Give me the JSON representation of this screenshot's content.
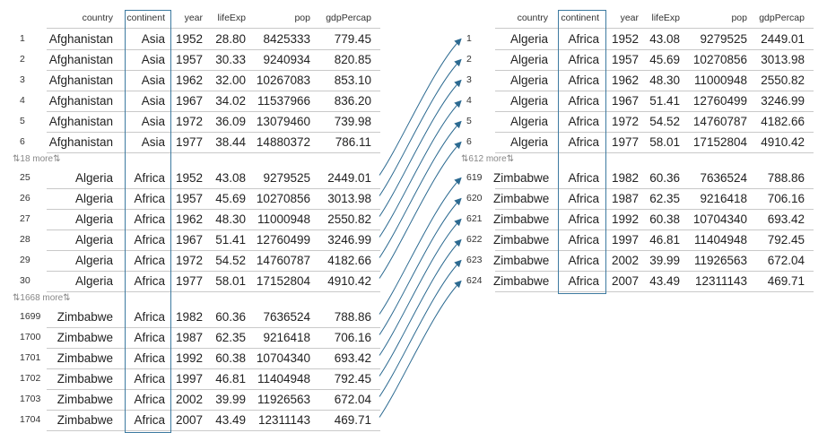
{
  "columns": [
    "country",
    "continent",
    "year",
    "lifeExp",
    "pop",
    "gdpPercap"
  ],
  "left_table": {
    "groups": [
      {
        "rows": [
          {
            "n": "1",
            "country": "Afghanistan",
            "continent": "Asia",
            "year": "1952",
            "lifeExp": "28.80",
            "pop": "8425333",
            "gdpPercap": "779.45"
          },
          {
            "n": "2",
            "country": "Afghanistan",
            "continent": "Asia",
            "year": "1957",
            "lifeExp": "30.33",
            "pop": "9240934",
            "gdpPercap": "820.85"
          },
          {
            "n": "3",
            "country": "Afghanistan",
            "continent": "Asia",
            "year": "1962",
            "lifeExp": "32.00",
            "pop": "10267083",
            "gdpPercap": "853.10"
          },
          {
            "n": "4",
            "country": "Afghanistan",
            "continent": "Asia",
            "year": "1967",
            "lifeExp": "34.02",
            "pop": "11537966",
            "gdpPercap": "836.20"
          },
          {
            "n": "5",
            "country": "Afghanistan",
            "continent": "Asia",
            "year": "1972",
            "lifeExp": "36.09",
            "pop": "13079460",
            "gdpPercap": "739.98"
          },
          {
            "n": "6",
            "country": "Afghanistan",
            "continent": "Asia",
            "year": "1977",
            "lifeExp": "38.44",
            "pop": "14880372",
            "gdpPercap": "786.11"
          }
        ],
        "gap_label": "⇅18 more⇅"
      },
      {
        "rows": [
          {
            "n": "25",
            "country": "Algeria",
            "continent": "Africa",
            "year": "1952",
            "lifeExp": "43.08",
            "pop": "9279525",
            "gdpPercap": "2449.01"
          },
          {
            "n": "26",
            "country": "Algeria",
            "continent": "Africa",
            "year": "1957",
            "lifeExp": "45.69",
            "pop": "10270856",
            "gdpPercap": "3013.98"
          },
          {
            "n": "27",
            "country": "Algeria",
            "continent": "Africa",
            "year": "1962",
            "lifeExp": "48.30",
            "pop": "11000948",
            "gdpPercap": "2550.82"
          },
          {
            "n": "28",
            "country": "Algeria",
            "continent": "Africa",
            "year": "1967",
            "lifeExp": "51.41",
            "pop": "12760499",
            "gdpPercap": "3246.99"
          },
          {
            "n": "29",
            "country": "Algeria",
            "continent": "Africa",
            "year": "1972",
            "lifeExp": "54.52",
            "pop": "14760787",
            "gdpPercap": "4182.66"
          },
          {
            "n": "30",
            "country": "Algeria",
            "continent": "Africa",
            "year": "1977",
            "lifeExp": "58.01",
            "pop": "17152804",
            "gdpPercap": "4910.42"
          }
        ],
        "gap_label": "⇅1668 more⇅"
      },
      {
        "rows": [
          {
            "n": "1699",
            "country": "Zimbabwe",
            "continent": "Africa",
            "year": "1982",
            "lifeExp": "60.36",
            "pop": "7636524",
            "gdpPercap": "788.86"
          },
          {
            "n": "1700",
            "country": "Zimbabwe",
            "continent": "Africa",
            "year": "1987",
            "lifeExp": "62.35",
            "pop": "9216418",
            "gdpPercap": "706.16"
          },
          {
            "n": "1701",
            "country": "Zimbabwe",
            "continent": "Africa",
            "year": "1992",
            "lifeExp": "60.38",
            "pop": "10704340",
            "gdpPercap": "693.42"
          },
          {
            "n": "1702",
            "country": "Zimbabwe",
            "continent": "Africa",
            "year": "1997",
            "lifeExp": "46.81",
            "pop": "11404948",
            "gdpPercap": "792.45"
          },
          {
            "n": "1703",
            "country": "Zimbabwe",
            "continent": "Africa",
            "year": "2002",
            "lifeExp": "39.99",
            "pop": "11926563",
            "gdpPercap": "672.04"
          },
          {
            "n": "1704",
            "country": "Zimbabwe",
            "continent": "Africa",
            "year": "2007",
            "lifeExp": "43.49",
            "pop": "12311143",
            "gdpPercap": "469.71"
          }
        ],
        "gap_label": ""
      }
    ]
  },
  "right_table": {
    "groups": [
      {
        "rows": [
          {
            "n": "1",
            "country": "Algeria",
            "continent": "Africa",
            "year": "1952",
            "lifeExp": "43.08",
            "pop": "9279525",
            "gdpPercap": "2449.01"
          },
          {
            "n": "2",
            "country": "Algeria",
            "continent": "Africa",
            "year": "1957",
            "lifeExp": "45.69",
            "pop": "10270856",
            "gdpPercap": "3013.98"
          },
          {
            "n": "3",
            "country": "Algeria",
            "continent": "Africa",
            "year": "1962",
            "lifeExp": "48.30",
            "pop": "11000948",
            "gdpPercap": "2550.82"
          },
          {
            "n": "4",
            "country": "Algeria",
            "continent": "Africa",
            "year": "1967",
            "lifeExp": "51.41",
            "pop": "12760499",
            "gdpPercap": "3246.99"
          },
          {
            "n": "5",
            "country": "Algeria",
            "continent": "Africa",
            "year": "1972",
            "lifeExp": "54.52",
            "pop": "14760787",
            "gdpPercap": "4182.66"
          },
          {
            "n": "6",
            "country": "Algeria",
            "continent": "Africa",
            "year": "1977",
            "lifeExp": "58.01",
            "pop": "17152804",
            "gdpPercap": "4910.42"
          }
        ],
        "gap_label": "⇅612 more⇅"
      },
      {
        "rows": [
          {
            "n": "619",
            "country": "Zimbabwe",
            "continent": "Africa",
            "year": "1982",
            "lifeExp": "60.36",
            "pop": "7636524",
            "gdpPercap": "788.86"
          },
          {
            "n": "620",
            "country": "Zimbabwe",
            "continent": "Africa",
            "year": "1987",
            "lifeExp": "62.35",
            "pop": "9216418",
            "gdpPercap": "706.16"
          },
          {
            "n": "621",
            "country": "Zimbabwe",
            "continent": "Africa",
            "year": "1992",
            "lifeExp": "60.38",
            "pop": "10704340",
            "gdpPercap": "693.42"
          },
          {
            "n": "622",
            "country": "Zimbabwe",
            "continent": "Africa",
            "year": "1997",
            "lifeExp": "46.81",
            "pop": "11404948",
            "gdpPercap": "792.45"
          },
          {
            "n": "623",
            "country": "Zimbabwe",
            "continent": "Africa",
            "year": "2002",
            "lifeExp": "39.99",
            "pop": "11926563",
            "gdpPercap": "672.04"
          },
          {
            "n": "624",
            "country": "Zimbabwe",
            "continent": "Africa",
            "year": "2007",
            "lifeExp": "43.49",
            "pop": "12311143",
            "gdpPercap": "469.71"
          }
        ],
        "gap_label": ""
      }
    ]
  },
  "highlight_column": "continent",
  "colors": {
    "highlight": "#3d7aa0",
    "arrow": "#2c6a91",
    "muted": "#888888",
    "rule": "#c9c9c9"
  },
  "arrows": [
    {
      "from": "25",
      "to": "1"
    },
    {
      "from": "26",
      "to": "2"
    },
    {
      "from": "27",
      "to": "3"
    },
    {
      "from": "28",
      "to": "4"
    },
    {
      "from": "29",
      "to": "5"
    },
    {
      "from": "30",
      "to": "6"
    },
    {
      "from": "1699",
      "to": "619"
    },
    {
      "from": "1700",
      "to": "620"
    },
    {
      "from": "1701",
      "to": "621"
    },
    {
      "from": "1702",
      "to": "622"
    },
    {
      "from": "1703",
      "to": "623"
    },
    {
      "from": "1704",
      "to": "624"
    }
  ]
}
